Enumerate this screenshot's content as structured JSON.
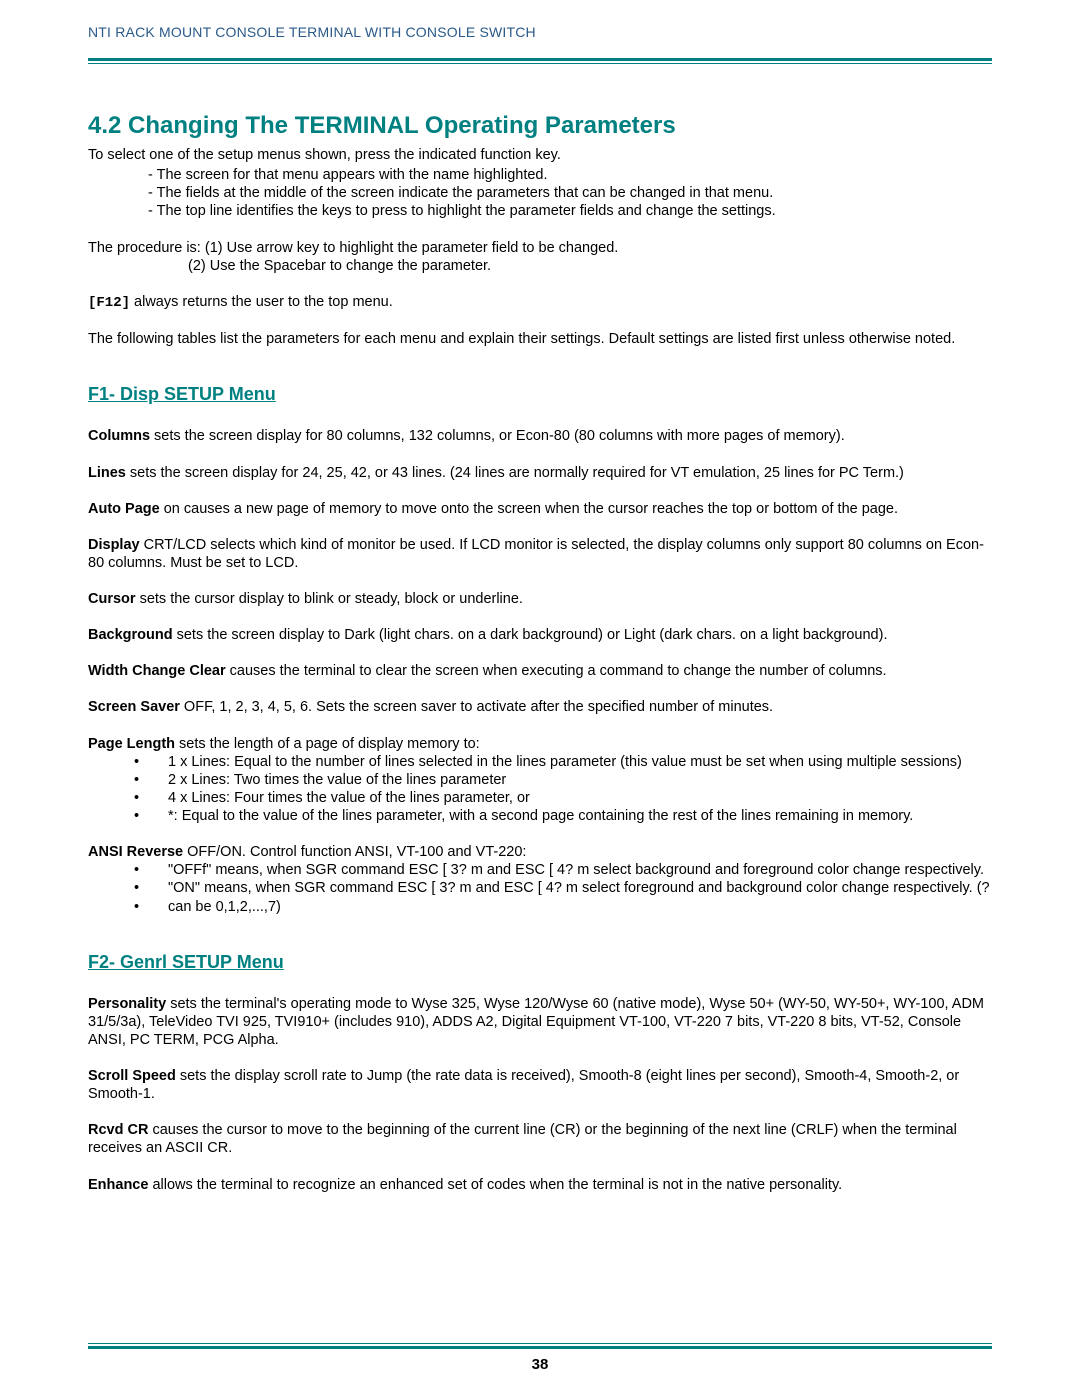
{
  "header": "NTI RACK MOUNT CONSOLE TERMINAL WITH CONSOLE SWITCH",
  "page_number": "38",
  "section": {
    "number": "4.2",
    "title": "Changing The TERMINAL Operating Parameters"
  },
  "intro": {
    "line1": "To select one of the setup menus shown, press the indicated function key.",
    "b1": "- The screen for that menu appears with the name highlighted.",
    "b2": "- The fields at the middle of the screen indicate the parameters that can be changed in that menu.",
    "b3": "- The top line identifies the keys to press to highlight the parameter fields and change the settings.",
    "proc1": "The procedure is: (1) Use arrow key to highlight the parameter field to be changed.",
    "proc2": "(2) Use the Spacebar to change the parameter.",
    "f12_key": "[F12]",
    "f12_rest": " always returns the user to the top menu.",
    "tables_note": "The following tables list the parameters for each menu and explain their settings. Default settings are listed first unless otherwise noted."
  },
  "f1": {
    "title": "F1-  Disp SETUP Menu",
    "columns_b": "Columns",
    "columns_t": " sets the screen display for 80 columns, 132 columns, or Econ-80 (80 columns with more pages of memory).",
    "lines_b": "Lines",
    "lines_t": " sets the screen display for 24, 25, 42, or 43 lines. (24 lines are normally required for VT emulation, 25 lines for PC Term.)",
    "autopage_b": "Auto Page",
    "autopage_t": " on causes a new page of memory to move onto the screen when the cursor reaches the top or bottom of the page.",
    "display_b": "Display",
    "display_t": " CRT/LCD selects which kind of monitor be used. If LCD monitor is selected, the display columns only support 80 columns on Econ-80 columns. Must be set to LCD.",
    "cursor_b": "Cursor",
    "cursor_t": " sets the cursor display to blink or steady, block or underline.",
    "background_b": "Background",
    "background_t": " sets the screen display to Dark (light chars. on a dark background) or Light (dark chars. on a light background).",
    "wcc_b": "Width Change Clear",
    "wcc_t": " causes the terminal to clear the screen when executing a command to change the number of columns.",
    "ss_b": "Screen Saver",
    "ss_t": " OFF, 1, 2, 3, 4, 5, 6. Sets the screen saver to activate after the specified number of minutes.",
    "pl_b": "Page Length",
    "pl_t": " sets the length of a page of display memory to:",
    "pl_items": [
      "1 x Lines: Equal to the number of lines selected in the lines parameter (this value must be set when using multiple sessions)",
      "2 x Lines: Two times the value of the lines parameter",
      "4 x Lines: Four times the value of the lines parameter, or",
      "*: Equal to the value of the lines parameter, with a second page containing the rest of the lines remaining in memory."
    ],
    "ansi_b": "ANSI Reverse",
    "ansi_t": " OFF/ON. Control function ANSI, VT-100 and VT-220:",
    "ansi_items": [
      "\"OFFf\" means, when SGR command ESC [ 3? m and ESC [ 4? m select background and foreground color change respectively.",
      "\"ON\" means, when SGR command ESC [ 3? m and ESC [ 4? m select foreground and background color change respectively. (?",
      "can be 0,1,2,...,7)"
    ]
  },
  "f2": {
    "title": "F2- Genrl SETUP Menu",
    "pers_b": "Personality",
    "pers_t": " sets the terminal's operating mode to Wyse 325, Wyse 120/Wyse 60 (native mode), Wyse 50+ (WY-50, WY-50+, WY-100, ADM 31/5/3a), TeleVideo TVI 925, TVI910+ (includes 910), ADDS A2, Digital Equipment VT-100, VT-220 7 bits, VT-220 8 bits, VT-52, Console ANSI, PC TERM, PCG Alpha.",
    "ss_b": "Scroll Speed",
    "ss_t": " sets the display scroll rate to Jump (the rate data is received), Smooth-8 (eight lines per second), Smooth-4, Smooth-2, or Smooth-1.",
    "rcr_b": "Rcvd CR",
    "rcr_t": " causes the cursor to move to the beginning of the current line (CR) or the beginning of the next line (CRLF) when the terminal receives an ASCII CR.",
    "enh_b": "Enhance",
    "enh_t": " allows the terminal to recognize an enhanced set of codes when the terminal is not in the native personality."
  },
  "colors": {
    "teal": "#008080",
    "header_blue": "#2a5a8a"
  }
}
